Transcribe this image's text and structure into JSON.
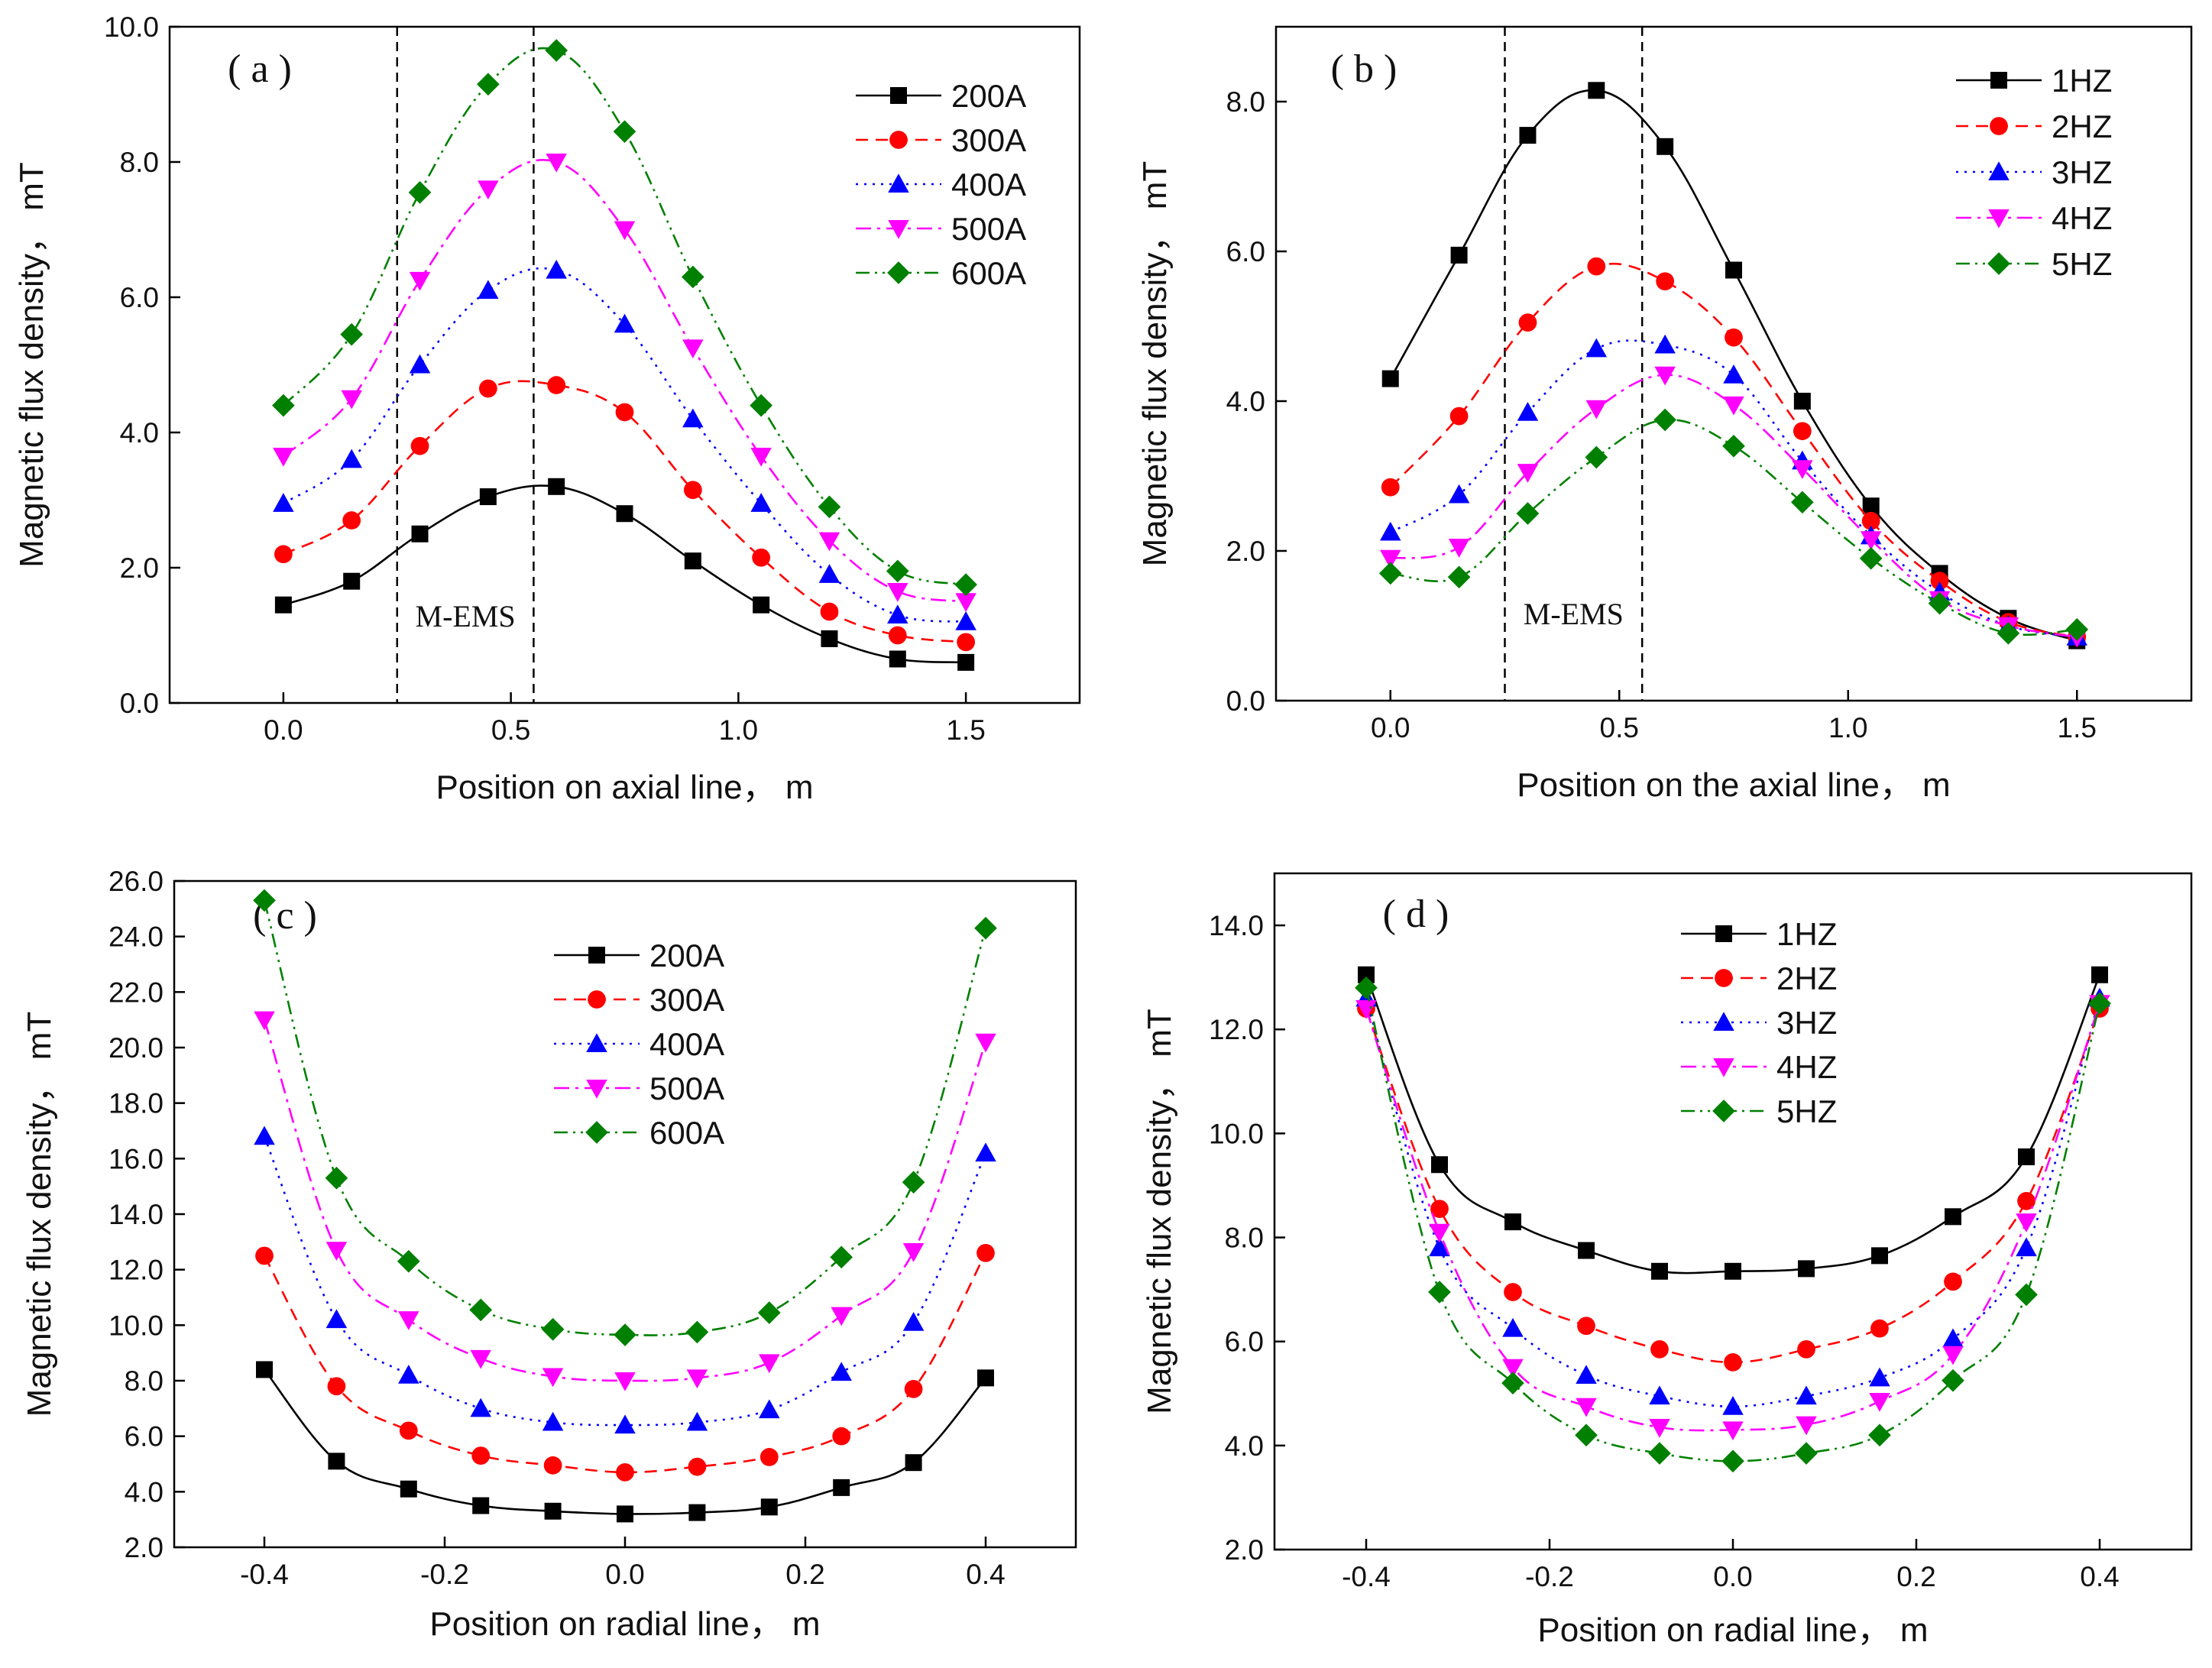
{
  "chart_data": [
    {
      "type": "line",
      "panel_label": "( a )",
      "xlabel": "Position on axial line， m",
      "ylabel": "Magnetic flux density， mT",
      "xlim": [
        -0.25,
        1.75
      ],
      "ylim": [
        0,
        10
      ],
      "xticks": [
        0.0,
        0.5,
        1.0,
        1.5
      ],
      "xtick_labels": [
        "0.0",
        "0.5",
        "1.0",
        "1.5"
      ],
      "yticks": [
        0,
        2,
        4,
        6,
        8,
        10
      ],
      "ytick_labels": [
        "0.0",
        "2.0",
        "4.0",
        "6.0",
        "8.0",
        "10.0"
      ],
      "region": {
        "label": "M-EMS",
        "x": [
          0.25,
          0.55
        ]
      },
      "legend_position": "top-right",
      "x": [
        0,
        0.15,
        0.3,
        0.45,
        0.6,
        0.75,
        0.9,
        1.05,
        1.2,
        1.35,
        1.5
      ],
      "series": [
        {
          "name": "200A",
          "values": [
            1.45,
            1.8,
            2.5,
            3.05,
            3.2,
            2.8,
            2.1,
            1.45,
            0.95,
            0.65,
            0.6
          ]
        },
        {
          "name": "300A",
          "values": [
            2.2,
            2.7,
            3.8,
            4.65,
            4.7,
            4.3,
            3.15,
            2.15,
            1.35,
            1.0,
            0.9
          ]
        },
        {
          "name": "400A",
          "values": [
            2.95,
            3.6,
            5.0,
            6.1,
            6.4,
            5.6,
            4.2,
            2.95,
            1.9,
            1.3,
            1.2
          ]
        },
        {
          "name": "500A",
          "values": [
            3.65,
            4.5,
            6.25,
            7.6,
            8.0,
            7.0,
            5.25,
            3.65,
            2.4,
            1.65,
            1.5
          ]
        },
        {
          "name": "600A",
          "values": [
            4.4,
            5.45,
            7.55,
            9.15,
            9.65,
            8.45,
            6.3,
            4.4,
            2.9,
            1.95,
            1.75
          ]
        }
      ]
    },
    {
      "type": "line",
      "panel_label": "( b )",
      "xlabel": "Position on the axial line， m",
      "ylabel": "Magnetic flux density， mT",
      "xlim": [
        -0.25,
        1.75
      ],
      "ylim": [
        0,
        9
      ],
      "xticks": [
        0.0,
        0.5,
        1.0,
        1.5
      ],
      "xtick_labels": [
        "0.0",
        "0.5",
        "1.0",
        "1.5"
      ],
      "yticks": [
        0,
        2,
        4,
        6,
        8
      ],
      "ytick_labels": [
        "0.0",
        "2.0",
        "4.0",
        "6.0",
        "8.0"
      ],
      "region": {
        "label": "M-EMS",
        "x": [
          0.25,
          0.55
        ]
      },
      "legend_position": "top-right",
      "x": [
        0,
        0.15,
        0.3,
        0.45,
        0.6,
        0.75,
        0.9,
        1.05,
        1.2,
        1.35,
        1.5
      ],
      "series": [
        {
          "name": "1HZ",
          "values": [
            4.3,
            5.95,
            7.55,
            8.15,
            7.4,
            5.75,
            4.0,
            2.6,
            1.7,
            1.1,
            0.8
          ]
        },
        {
          "name": "2HZ",
          "values": [
            2.85,
            3.8,
            5.05,
            5.8,
            5.6,
            4.85,
            3.6,
            2.4,
            1.6,
            1.05,
            0.85
          ]
        },
        {
          "name": "3HZ",
          "values": [
            2.25,
            2.75,
            3.85,
            4.7,
            4.75,
            4.35,
            3.2,
            2.2,
            1.45,
            1.0,
            0.85
          ]
        },
        {
          "name": "4HZ",
          "values": [
            1.9,
            2.05,
            3.05,
            3.9,
            4.35,
            3.95,
            3.1,
            2.15,
            1.35,
            1.0,
            0.85
          ]
        },
        {
          "name": "5HZ",
          "values": [
            1.7,
            1.65,
            2.5,
            3.25,
            3.75,
            3.4,
            2.65,
            1.9,
            1.3,
            0.9,
            0.95
          ]
        }
      ]
    },
    {
      "type": "line",
      "panel_label": "( c )",
      "xlabel": "Position on radial line， m",
      "ylabel": "Magnetic flux density， mT",
      "xlim": [
        -0.5,
        0.5
      ],
      "ylim": [
        2,
        26
      ],
      "xticks": [
        -0.4,
        -0.2,
        0.0,
        0.2,
        0.4
      ],
      "xtick_labels": [
        "-0.4",
        "-0.2",
        "0.0",
        "0.2",
        "0.4"
      ],
      "yticks": [
        2,
        4,
        6,
        8,
        10,
        12,
        14,
        16,
        18,
        20,
        22,
        24,
        26
      ],
      "ytick_labels": [
        "2.0",
        "4.0",
        "6.0",
        "8.0",
        "10.0",
        "12.0",
        "14.0",
        "16.0",
        "18.0",
        "20.0",
        "22.0",
        "24.0",
        "26.0"
      ],
      "legend_position": "top-center",
      "x": [
        -0.4,
        -0.32,
        -0.24,
        -0.16,
        -0.08,
        0,
        0.08,
        0.16,
        0.24,
        0.32,
        0.4
      ],
      "series": [
        {
          "name": "200A",
          "values": [
            8.4,
            5.1,
            4.1,
            3.5,
            3.3,
            3.2,
            3.25,
            3.45,
            4.15,
            5.05,
            8.1
          ]
        },
        {
          "name": "300A",
          "values": [
            12.5,
            7.8,
            6.2,
            5.3,
            4.95,
            4.7,
            4.9,
            5.25,
            6.0,
            7.7,
            12.6
          ]
        },
        {
          "name": "400A",
          "values": [
            16.8,
            10.2,
            8.2,
            7.0,
            6.5,
            6.4,
            6.5,
            6.95,
            8.3,
            10.1,
            16.2
          ]
        },
        {
          "name": "500A",
          "values": [
            21.0,
            12.7,
            10.2,
            8.8,
            8.15,
            8.0,
            8.1,
            8.65,
            10.35,
            12.65,
            20.2
          ]
        },
        {
          "name": "600A",
          "values": [
            25.3,
            15.3,
            12.3,
            10.55,
            9.85,
            9.65,
            9.75,
            10.45,
            12.45,
            15.15,
            24.3
          ]
        }
      ]
    },
    {
      "type": "line",
      "panel_label": "( d )",
      "xlabel": "Position on radial line， m",
      "ylabel": "Magnetic flux density， mT",
      "xlim": [
        -0.5,
        0.5
      ],
      "ylim": [
        2,
        15
      ],
      "xticks": [
        -0.4,
        -0.2,
        0.0,
        0.2,
        0.4
      ],
      "xtick_labels": [
        "-0.4",
        "-0.2",
        "0.0",
        "0.2",
        "0.4"
      ],
      "yticks": [
        2,
        4,
        6,
        8,
        10,
        12,
        14
      ],
      "ytick_labels": [
        "2.0",
        "4.0",
        "6.0",
        "8.0",
        "10.0",
        "12.0",
        "14.0"
      ],
      "legend_position": "top-center",
      "x": [
        -0.4,
        -0.32,
        -0.24,
        -0.16,
        -0.08,
        0,
        0.08,
        0.16,
        0.24,
        0.32,
        0.4
      ],
      "series": [
        {
          "name": "1HZ",
          "values": [
            13.05,
            9.4,
            8.3,
            7.75,
            7.35,
            7.35,
            7.4,
            7.65,
            8.4,
            9.55,
            13.05
          ]
        },
        {
          "name": "2HZ",
          "values": [
            12.4,
            8.55,
            6.95,
            6.3,
            5.85,
            5.6,
            5.85,
            6.25,
            7.15,
            8.7,
            12.4
          ]
        },
        {
          "name": "3HZ",
          "values": [
            12.6,
            7.8,
            6.25,
            5.35,
            4.95,
            4.75,
            4.95,
            5.3,
            6.05,
            7.8,
            12.6
          ]
        },
        {
          "name": "4HZ",
          "values": [
            12.4,
            8.1,
            5.5,
            4.75,
            4.35,
            4.3,
            4.4,
            4.85,
            5.75,
            8.3,
            12.5
          ]
        },
        {
          "name": "5HZ",
          "values": [
            12.8,
            6.95,
            5.2,
            4.2,
            3.85,
            3.7,
            3.85,
            4.2,
            5.25,
            6.9,
            12.5
          ]
        }
      ]
    }
  ],
  "series_styles": [
    {
      "color": "#000000",
      "dash": "",
      "marker": "square"
    },
    {
      "color": "#ff0000",
      "dash": "16,10",
      "marker": "circle"
    },
    {
      "color": "#0000ff",
      "dash": "3,8",
      "marker": "triangle-up"
    },
    {
      "color": "#ff00ff",
      "dash": "20,8,4,8",
      "marker": "triangle-down"
    },
    {
      "color": "#008000",
      "dash": "18,7,3,7,3,7",
      "marker": "diamond"
    }
  ]
}
